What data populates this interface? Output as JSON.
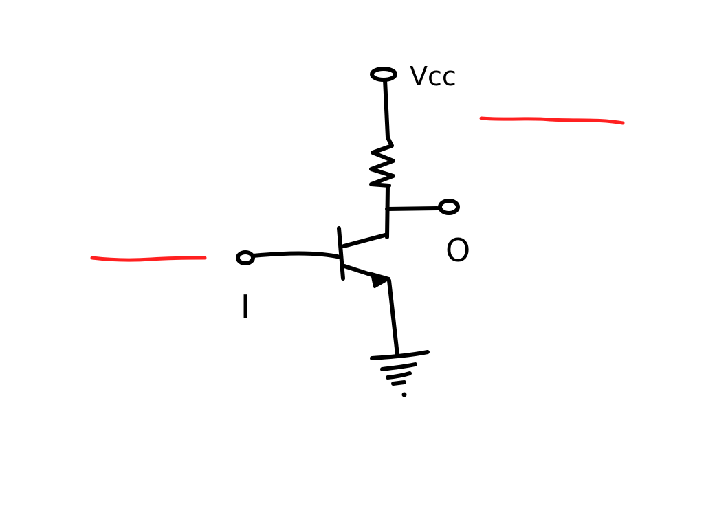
{
  "labels": {
    "supply": "Vcc",
    "input": "I",
    "output": "O"
  },
  "colors": {
    "ink": "#000000",
    "annotation": "#ff2020",
    "background": "#ffffff"
  }
}
